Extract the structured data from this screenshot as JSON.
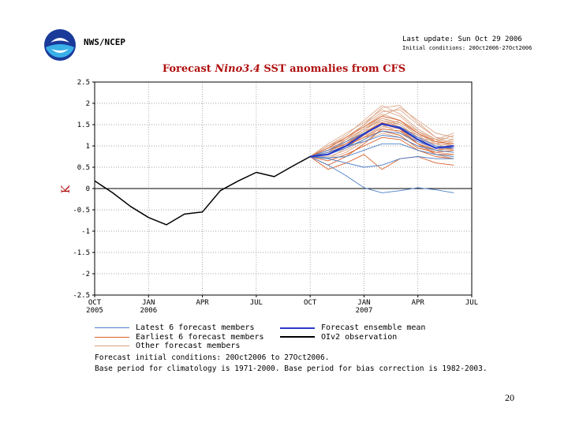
{
  "header": {
    "agency": "NWS/NCEP",
    "last_updated": "Last update: Sun Oct 29 2006",
    "initial_conditions": "Initial conditions: 20Oct2006-27Oct2006"
  },
  "colors": {
    "latest": "#4a7ec8",
    "earliest": "#d8602a",
    "other": "#d8a080",
    "mean": "#2a3ac8",
    "obs": "#000000",
    "title": "#b01010",
    "grid": "#888888"
  },
  "chart_data": {
    "type": "line",
    "title_prefix": "Forecast ",
    "title_italic": "Nino3.4",
    "title_suffix": " SST anomalies from CFS",
    "ylabel": "K",
    "ylim": [
      -2.5,
      2.5
    ],
    "xlim": [
      0,
      21
    ],
    "yticks": [
      -2.5,
      -2,
      -1.5,
      -1,
      -0.5,
      0,
      0.5,
      1,
      1.5,
      2,
      2.5
    ],
    "ytick_labels": [
      "-2.5",
      "-2",
      "-1.5",
      "-1",
      "-0.5",
      "0",
      "0.5",
      "1",
      "1.5",
      "2",
      "2.5"
    ],
    "xticks": [
      0,
      3,
      6,
      9,
      12,
      15,
      18,
      21
    ],
    "xtick_labels": [
      "OCT",
      "JAN",
      "APR",
      "JUL",
      "OCT",
      "JAN",
      "APR",
      "JUL"
    ],
    "xtick_years": [
      "2005",
      "2006",
      "",
      "",
      "",
      "2007",
      "",
      ""
    ],
    "observation": {
      "name": "OI v2 observation",
      "x": [
        0,
        1,
        2,
        3,
        4,
        5,
        6,
        7,
        8,
        9,
        10,
        11,
        12
      ],
      "y": [
        0.18,
        -0.1,
        -0.42,
        -0.68,
        -0.85,
        -0.6,
        -0.55,
        -0.05,
        0.18,
        0.38,
        0.28,
        0.52,
        0.75
      ]
    },
    "ensemble_mean": {
      "name": "Forecast ensemble mean",
      "x": [
        12,
        13,
        14,
        15,
        16,
        17,
        18,
        19,
        20
      ],
      "y": [
        0.75,
        0.8,
        1.0,
        1.28,
        1.52,
        1.42,
        1.15,
        0.95,
        1.0
      ]
    },
    "latest_members": {
      "name": "Latest 6 forecast members",
      "x": [
        12,
        13,
        14,
        15,
        16,
        17,
        18,
        19,
        20
      ],
      "series": [
        [
          0.75,
          0.55,
          0.3,
          0.02,
          -0.1,
          -0.05,
          0.02,
          -0.03,
          -0.1
        ],
        [
          0.75,
          0.7,
          0.6,
          0.5,
          0.55,
          0.7,
          0.75,
          0.7,
          0.7
        ],
        [
          0.75,
          0.85,
          1.0,
          1.1,
          1.25,
          1.2,
          1.0,
          0.9,
          0.85
        ],
        [
          0.75,
          0.8,
          0.95,
          1.15,
          1.35,
          1.3,
          1.1,
          0.95,
          0.95
        ],
        [
          0.75,
          0.9,
          1.1,
          1.3,
          1.5,
          1.45,
          1.2,
          1.0,
          0.95
        ],
        [
          0.75,
          0.72,
          0.75,
          0.9,
          1.05,
          1.05,
          0.9,
          0.8,
          0.75
        ]
      ]
    },
    "earliest_members": {
      "name": "Earliest 6 forecast members",
      "x": [
        12,
        13,
        14,
        15,
        16,
        17,
        18,
        19,
        20
      ],
      "series": [
        [
          0.75,
          0.45,
          0.6,
          0.8,
          0.45,
          0.7,
          0.75,
          0.6,
          0.55
        ],
        [
          0.75,
          0.9,
          1.05,
          1.3,
          1.55,
          1.4,
          1.05,
          0.9,
          0.95
        ],
        [
          0.75,
          0.65,
          0.8,
          1.0,
          1.2,
          1.15,
          0.9,
          0.75,
          0.7
        ],
        [
          0.75,
          0.95,
          1.2,
          1.45,
          1.7,
          1.6,
          1.3,
          1.1,
          1.05
        ],
        [
          0.75,
          0.55,
          0.75,
          1.05,
          1.4,
          1.35,
          1.05,
          0.8,
          0.8
        ],
        [
          0.75,
          0.85,
          1.0,
          1.2,
          1.35,
          1.25,
          0.95,
          0.85,
          0.9
        ]
      ]
    },
    "other_members": {
      "name": "Other forecast members",
      "x": [
        12,
        13,
        14,
        15,
        16,
        17,
        18,
        19,
        20
      ],
      "series": [
        [
          0.75,
          1.0,
          1.25,
          1.6,
          1.95,
          1.75,
          1.4,
          1.15,
          1.1
        ],
        [
          0.75,
          0.9,
          1.15,
          1.5,
          1.8,
          1.85,
          1.5,
          1.2,
          1.05
        ],
        [
          0.75,
          0.8,
          1.05,
          1.35,
          1.65,
          1.55,
          1.25,
          1.0,
          0.95
        ],
        [
          0.75,
          0.95,
          1.1,
          1.4,
          1.7,
          1.9,
          1.6,
          1.3,
          1.2
        ],
        [
          0.75,
          0.7,
          0.95,
          1.25,
          1.55,
          1.45,
          1.15,
          0.95,
          0.9
        ],
        [
          0.75,
          1.05,
          1.3,
          1.55,
          1.85,
          1.7,
          1.35,
          1.1,
          1.0
        ],
        [
          0.75,
          0.85,
          1.0,
          1.3,
          1.6,
          1.5,
          1.2,
          1.0,
          0.95
        ],
        [
          0.75,
          0.75,
          0.9,
          1.15,
          1.45,
          1.4,
          1.1,
          0.9,
          0.85
        ],
        [
          0.75,
          0.95,
          1.2,
          1.45,
          1.75,
          1.6,
          1.3,
          1.05,
          1.0
        ],
        [
          0.75,
          0.8,
          1.0,
          1.2,
          1.5,
          1.3,
          1.05,
          0.85,
          0.8
        ],
        [
          0.75,
          1.0,
          1.15,
          1.4,
          1.6,
          1.45,
          1.15,
          1.05,
          1.15
        ],
        [
          0.75,
          0.9,
          1.05,
          1.25,
          1.4,
          1.35,
          1.2,
          1.1,
          1.25
        ],
        [
          0.75,
          0.85,
          1.1,
          1.35,
          1.5,
          1.6,
          1.35,
          1.15,
          1.0
        ],
        [
          0.75,
          0.7,
          0.85,
          1.1,
          1.3,
          1.2,
          1.0,
          0.8,
          0.7
        ],
        [
          0.75,
          1.0,
          1.2,
          1.5,
          1.9,
          1.95,
          1.55,
          1.2,
          1.15
        ],
        [
          0.75,
          0.9,
          1.0,
          1.2,
          1.45,
          1.55,
          1.3,
          1.05,
          0.9
        ],
        [
          0.75,
          0.85,
          1.15,
          1.4,
          1.65,
          1.5,
          1.2,
          1.0,
          0.95
        ],
        [
          0.75,
          0.95,
          1.1,
          1.3,
          1.55,
          1.45,
          1.25,
          1.15,
          1.3
        ]
      ]
    }
  },
  "legend": {
    "latest": "Latest 6 forecast members",
    "earliest": "Earliest 6 forecast members",
    "other": "Other forecast members",
    "mean": "Forecast ensemble mean",
    "obs": "OIv2 observation"
  },
  "notes": {
    "line1": "Forecast initial conditions: 20Oct2006 to 27Oct2006.",
    "line2": "Base period for climatology is 1971-2000. Base period for bias correction is 1982-2003."
  },
  "page_number": "20"
}
